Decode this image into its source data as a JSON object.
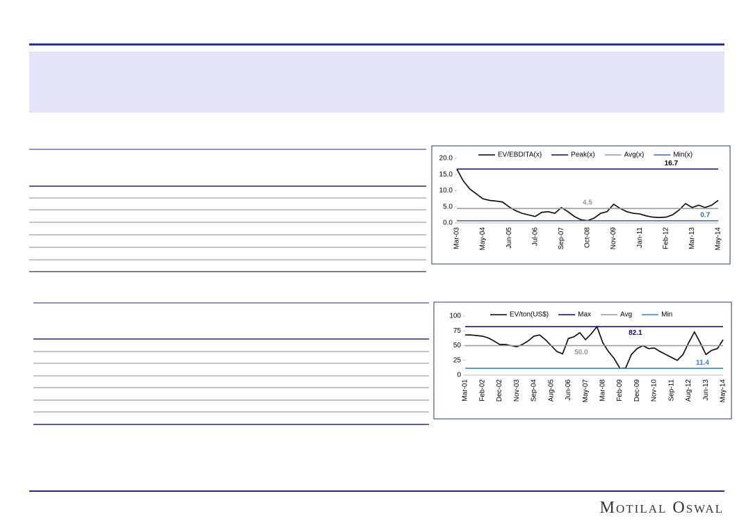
{
  "chart_data": [
    {
      "type": "line",
      "categories": [
        "Mar-03",
        null,
        null,
        null,
        "May-04",
        null,
        null,
        null,
        "Jun-05",
        null,
        null,
        null,
        "Jul-06",
        null,
        null,
        null,
        "Sep-07",
        null,
        null,
        null,
        "Oct-08",
        null,
        null,
        null,
        "Nov-09",
        null,
        null,
        null,
        "Jan-11",
        null,
        null,
        null,
        "Feb-12",
        null,
        null,
        null,
        "Mar-13",
        null,
        null,
        null,
        "May-14"
      ],
      "series": [
        {
          "name": "EV/EBDITA(x)",
          "color": "#000000",
          "values": [
            16.7,
            13,
            10.5,
            9,
            7.5,
            7,
            6.8,
            6.5,
            5,
            3.8,
            3,
            2.5,
            2,
            3.3,
            3.5,
            3,
            4.8,
            3.5,
            2,
            1,
            0.7,
            1.5,
            3,
            3.5,
            5.8,
            4.5,
            3.5,
            3,
            2.8,
            2.2,
            1.8,
            1.7,
            1.8,
            2.5,
            4,
            6,
            4.8,
            5.5,
            4.8,
            5.5,
            7
          ]
        },
        {
          "name": "Peak(x)",
          "color": "#000080",
          "value": 16.7
        },
        {
          "name": "Avg(x)",
          "color": "#969696",
          "value": 4.5
        },
        {
          "name": "Min(x)",
          "color": "#3366cc",
          "value": 0.7
        }
      ],
      "ylim": [
        0,
        20
      ],
      "yticks": [
        {
          "value": 0,
          "label": "0.0"
        },
        {
          "value": 5,
          "label": "5.0"
        },
        {
          "value": 10,
          "label": "10.0"
        },
        {
          "value": 15,
          "label": "15.0"
        },
        {
          "value": 20,
          "label": "20.0"
        }
      ],
      "legend": "top"
    },
    {
      "type": "line",
      "categories": [
        "Mar-01",
        null,
        null,
        "Feb-02",
        null,
        null,
        "Dec-02",
        null,
        null,
        "Nov-03",
        null,
        null,
        "Sep-04",
        null,
        null,
        "Aug-05",
        null,
        null,
        "Jun-06",
        null,
        null,
        "May-07",
        null,
        null,
        "Mar-08",
        null,
        null,
        "Feb-09",
        null,
        null,
        "Dec-09",
        null,
        null,
        "Nov-10",
        null,
        null,
        "Sep-11",
        null,
        null,
        "Aug-12",
        null,
        null,
        "Jun-13",
        null,
        null,
        "May-14"
      ],
      "series": [
        {
          "name": "EV/ton(US$)",
          "color": "#000000",
          "values": [
            68,
            68,
            67,
            66,
            63,
            58,
            52,
            52,
            50,
            48,
            52,
            58,
            66,
            68,
            60,
            50,
            40,
            36,
            62,
            65,
            72,
            60,
            70,
            82.1,
            55,
            40,
            28,
            11.4,
            12,
            35,
            45,
            50,
            45,
            46,
            40,
            35,
            30,
            25,
            35,
            55,
            73,
            55,
            35,
            42,
            45,
            60
          ]
        },
        {
          "name": "Max",
          "color": "#000080",
          "value": 82.1
        },
        {
          "name": "Avg",
          "color": "#969696",
          "value": 50,
          "value_label": "50.0"
        },
        {
          "name": "Min",
          "color": "#3a7bd5",
          "value": 11.4
        }
      ],
      "ylim": [
        0,
        100
      ],
      "yticks": [
        0,
        25,
        50,
        75,
        100
      ],
      "legend": "top"
    }
  ],
  "footer": {
    "logo": "Motilal Oswal"
  }
}
